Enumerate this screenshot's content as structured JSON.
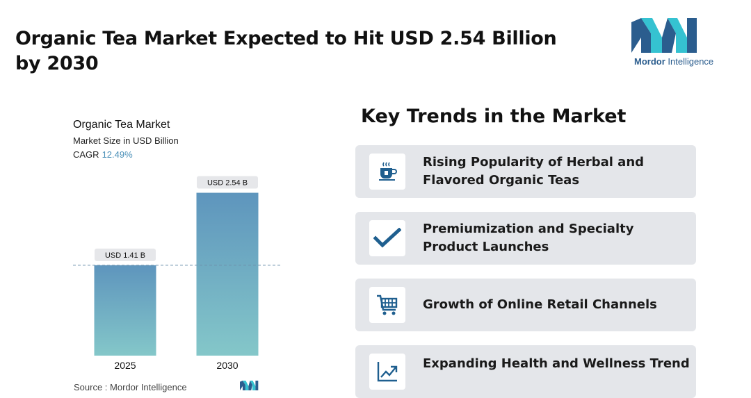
{
  "headline": "Organic Tea Market Expected to Hit USD 2.54 Billion by 2030",
  "logo": {
    "brand_bold": "Mordor",
    "brand_light": " Intelligence",
    "color": "#2b5d8e",
    "accent": "#35c2d1"
  },
  "chart_data": {
    "type": "bar",
    "title": "Organic Tea Market",
    "subtitle": "Market Size in USD Billion",
    "cagr_label": "CAGR",
    "cagr_value": "12.49%",
    "categories": [
      "2025",
      "2030"
    ],
    "values": [
      1.41,
      2.54
    ],
    "data_labels": [
      "USD 1.41 B",
      "USD 2.54 B"
    ],
    "ylim": [
      0,
      2.6
    ],
    "reference_line": 1.41,
    "bar_color_top": "#5e95bd",
    "bar_color_bottom": "#84c7c9"
  },
  "source": "Source :  Mordor Intelligence",
  "trends": {
    "title": "Key Trends in the Market",
    "items": [
      {
        "label": "Rising Popularity of Herbal and Flavored Organic Teas",
        "icon": "tea-cup-icon"
      },
      {
        "label": "Premiumization and Specialty Product Launches",
        "icon": "checkmark-icon"
      },
      {
        "label": "Growth of Online Retail Channels",
        "icon": "shopping-cart-icon"
      },
      {
        "label": "Expanding Health and Wellness Trend",
        "icon": "growth-chart-icon"
      }
    ],
    "icon_color": "#1f5f8f"
  }
}
